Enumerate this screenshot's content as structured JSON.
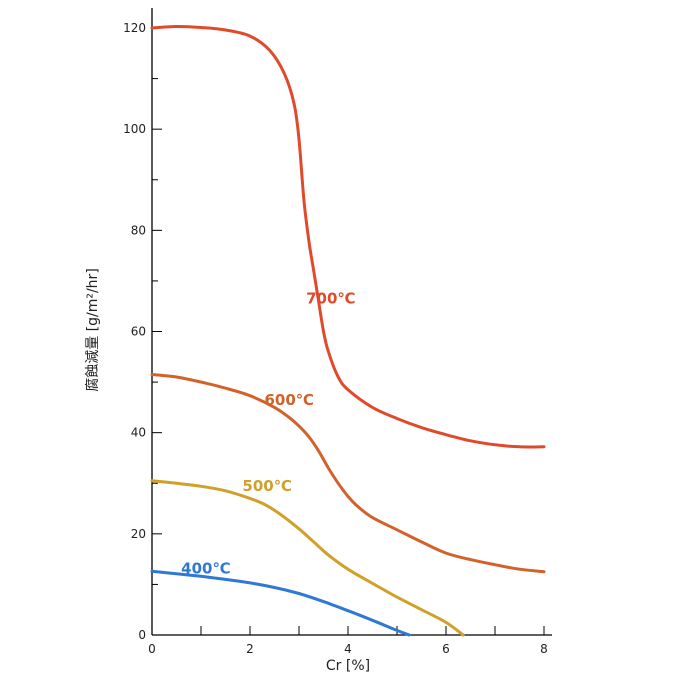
{
  "chart_data": {
    "type": "line",
    "xlabel": "Cr [%]",
    "ylabel": "腐蝕減量 [g/m²/hr]",
    "xlim": [
      0,
      8
    ],
    "ylim": [
      0,
      120
    ],
    "x_ticks": [
      0,
      2,
      4,
      6,
      8
    ],
    "y_ticks": [
      0,
      20,
      40,
      60,
      80,
      100,
      120
    ],
    "grid": false,
    "series": [
      {
        "name": "700℃",
        "color": "#e04a2c",
        "points": [
          [
            0,
            120
          ],
          [
            0.5,
            120.3
          ],
          [
            1.0,
            120.1
          ],
          [
            1.5,
            119.6
          ],
          [
            2.0,
            118.4
          ],
          [
            2.4,
            115.6
          ],
          [
            2.7,
            111.0
          ],
          [
            2.9,
            105.0
          ],
          [
            3.0,
            98.0
          ],
          [
            3.1,
            86.0
          ],
          [
            3.2,
            78.0
          ],
          [
            3.3,
            72.0
          ],
          [
            3.4,
            66.0
          ],
          [
            3.5,
            60.0
          ],
          [
            3.6,
            56.0
          ],
          [
            3.8,
            51.0
          ],
          [
            4.0,
            48.5
          ],
          [
            4.5,
            45.0
          ],
          [
            5.0,
            42.8
          ],
          [
            5.5,
            41.0
          ],
          [
            6.0,
            39.6
          ],
          [
            6.5,
            38.4
          ],
          [
            7.0,
            37.6
          ],
          [
            7.5,
            37.2
          ],
          [
            8.0,
            37.2
          ]
        ]
      },
      {
        "name": "600℃",
        "color": "#d2622a",
        "points": [
          [
            0,
            51.5
          ],
          [
            0.5,
            51.0
          ],
          [
            1.0,
            50.0
          ],
          [
            1.5,
            48.8
          ],
          [
            2.0,
            47.3
          ],
          [
            2.5,
            45.0
          ],
          [
            2.8,
            43.0
          ],
          [
            3.0,
            41.3
          ],
          [
            3.2,
            39.2
          ],
          [
            3.4,
            36.4
          ],
          [
            3.6,
            33.0
          ],
          [
            3.8,
            30.0
          ],
          [
            4.0,
            27.4
          ],
          [
            4.2,
            25.4
          ],
          [
            4.5,
            23.2
          ],
          [
            5.0,
            20.8
          ],
          [
            5.5,
            18.4
          ],
          [
            6.0,
            16.2
          ],
          [
            6.5,
            14.9
          ],
          [
            7.0,
            13.9
          ],
          [
            7.5,
            13.0
          ],
          [
            8.0,
            12.5
          ]
        ]
      },
      {
        "name": "500℃",
        "color": "#d0a02a",
        "points": [
          [
            0,
            30.5
          ],
          [
            0.5,
            30.0
          ],
          [
            1.0,
            29.4
          ],
          [
            1.5,
            28.5
          ],
          [
            2.0,
            27.0
          ],
          [
            2.3,
            25.8
          ],
          [
            2.6,
            24.0
          ],
          [
            3.0,
            21.0
          ],
          [
            3.3,
            18.4
          ],
          [
            3.6,
            15.8
          ],
          [
            4.0,
            13.0
          ],
          [
            4.5,
            10.2
          ],
          [
            5.0,
            7.5
          ],
          [
            5.5,
            5.0
          ],
          [
            6.0,
            2.5
          ],
          [
            6.35,
            0
          ]
        ]
      },
      {
        "name": "400℃",
        "color": "#2f78d4",
        "points": [
          [
            0,
            12.6
          ],
          [
            0.5,
            12.1
          ],
          [
            1.0,
            11.6
          ],
          [
            1.5,
            11.0
          ],
          [
            2.0,
            10.3
          ],
          [
            2.5,
            9.4
          ],
          [
            3.0,
            8.2
          ],
          [
            3.5,
            6.6
          ],
          [
            4.0,
            4.8
          ],
          [
            4.5,
            2.9
          ],
          [
            5.0,
            0.9
          ],
          [
            5.25,
            0
          ]
        ]
      }
    ],
    "annotations": [
      {
        "text": "700℃",
        "series": 0,
        "x": 3.65,
        "y": 65.5
      },
      {
        "text": "600℃",
        "series": 1,
        "x": 2.8,
        "y": 45.5
      },
      {
        "text": "500℃",
        "series": 2,
        "x": 2.35,
        "y": 28.5
      },
      {
        "text": "400℃",
        "series": 3,
        "x": 1.1,
        "y": 12.2
      }
    ]
  }
}
